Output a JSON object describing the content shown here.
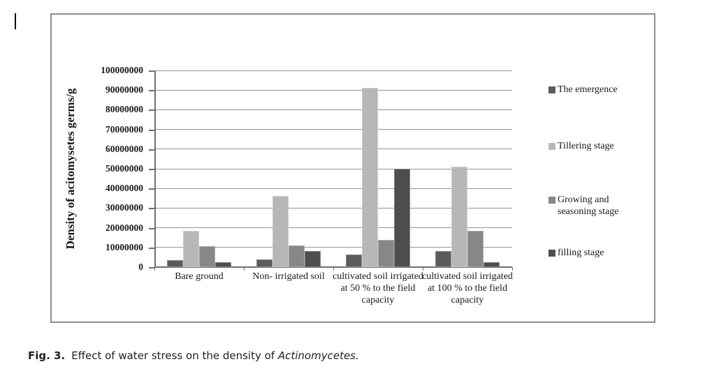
{
  "caption": {
    "label": "Fig. 3.",
    "text": "Effect of water stress on the density of ",
    "species": "Actinomycetes."
  },
  "chart_data": {
    "type": "bar",
    "title": "",
    "xlabel": "",
    "ylabel": "Density of acitomysetes germs/g",
    "ylim": [
      0,
      100000000
    ],
    "yticks": [
      0,
      10000000,
      20000000,
      30000000,
      40000000,
      50000000,
      60000000,
      70000000,
      80000000,
      90000000,
      100000000
    ],
    "grid": "horizontal",
    "legend_position": "right",
    "categories": [
      "Bare ground",
      "Non- irrigated soil",
      "cultivated soil irrigated at 50 % to the field capacity",
      "cultivated soil irrigated at 100 % to the field capacity"
    ],
    "series": [
      {
        "name": "The emergence",
        "color": "#5b5b5b",
        "values": [
          3500000,
          4000000,
          6500000,
          8000000
        ]
      },
      {
        "name": "Tillering stage",
        "color": "#b7b7b7",
        "values": [
          18500000,
          36000000,
          91000000,
          51000000
        ]
      },
      {
        "name": "Growing and seasoning stage",
        "color": "#878787",
        "values": [
          10500000,
          11000000,
          14000000,
          18500000
        ]
      },
      {
        "name": "filling stage",
        "color": "#4e4e4e",
        "values": [
          2500000,
          8000000,
          50000000,
          2500000
        ]
      }
    ]
  }
}
